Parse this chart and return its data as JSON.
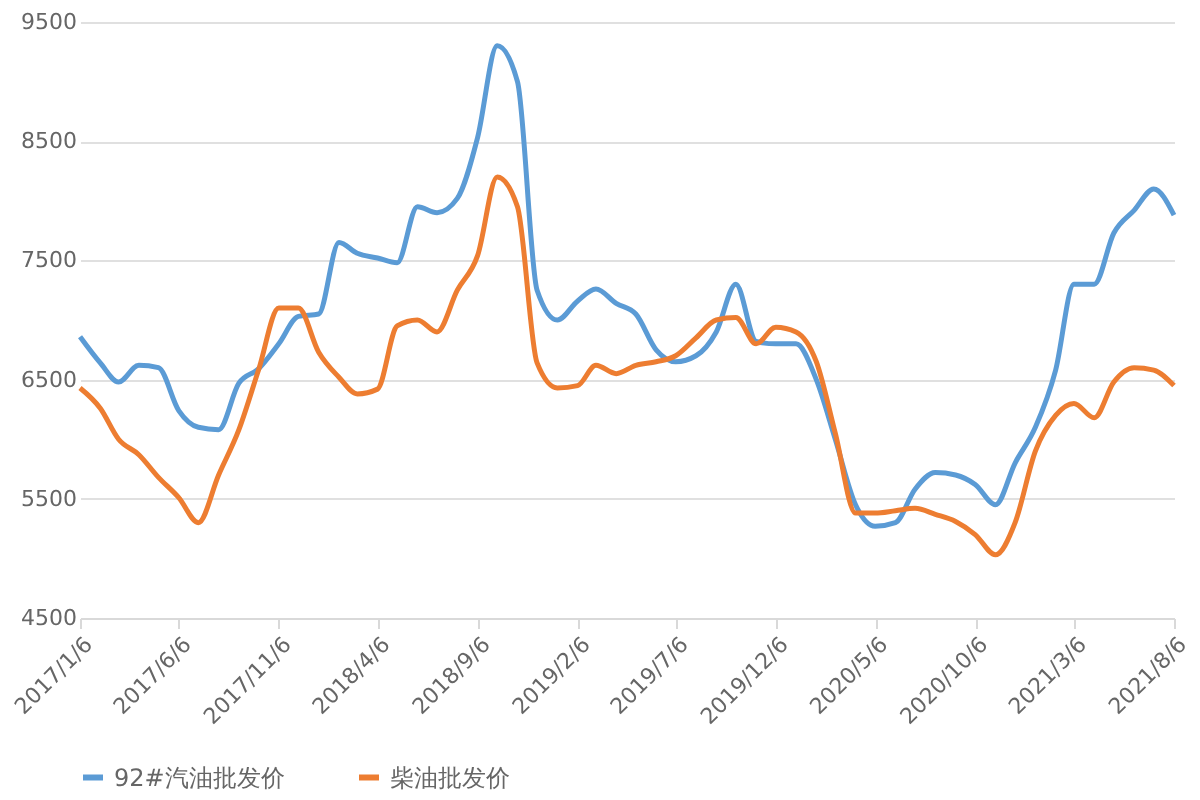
{
  "chart_data": {
    "type": "line",
    "x": [
      "2017-01-06",
      "2017-02-06",
      "2017-03-06",
      "2017-04-06",
      "2017-05-06",
      "2017-06-06",
      "2017-07-06",
      "2017-08-06",
      "2017-09-06",
      "2017-10-06",
      "2017-11-06",
      "2017-12-06",
      "2018-01-06",
      "2018-02-06",
      "2018-03-06",
      "2018-04-06",
      "2018-05-06",
      "2018-06-06",
      "2018-07-06",
      "2018-08-06",
      "2018-09-06",
      "2018-10-06",
      "2018-11-06",
      "2018-12-06",
      "2019-01-06",
      "2019-02-06",
      "2019-03-06",
      "2019-04-06",
      "2019-05-06",
      "2019-06-06",
      "2019-07-06",
      "2019-08-06",
      "2019-09-06",
      "2019-10-06",
      "2019-11-06",
      "2019-12-06",
      "2020-01-06",
      "2020-02-06",
      "2020-03-06",
      "2020-04-06",
      "2020-05-06",
      "2020-06-06",
      "2020-07-06",
      "2020-08-06",
      "2020-09-06",
      "2020-10-06",
      "2020-11-06",
      "2020-12-06",
      "2021-01-06",
      "2021-02-06",
      "2021-03-06",
      "2021-04-06",
      "2021-05-06",
      "2021-06-06",
      "2021-07-06",
      "2021-08-06"
    ],
    "series": [
      {
        "name": "92#汽油批发价",
        "color": "#5b9bd5",
        "values": [
          6860,
          6640,
          6480,
          6620,
          6600,
          6240,
          6100,
          6080,
          6470,
          6590,
          6800,
          7030,
          7050,
          7650,
          7560,
          7520,
          7480,
          7950,
          7900,
          8020,
          8530,
          9300,
          9000,
          7250,
          7000,
          7160,
          7260,
          7140,
          7050,
          6750,
          6650,
          6700,
          6900,
          7300,
          6820,
          6800,
          6800,
          6500,
          6000,
          5450,
          5270,
          5300,
          5580,
          5720,
          5700,
          5620,
          5450,
          5800,
          6100,
          6580,
          7300,
          7300,
          7730,
          7920,
          8100,
          7880
        ]
      },
      {
        "name": "柴油批发价",
        "color": "#ed7d31",
        "values": [
          6430,
          6260,
          6000,
          5870,
          5680,
          5510,
          5300,
          5700,
          6080,
          6580,
          7100,
          7100,
          6730,
          6520,
          6380,
          6420,
          6950,
          7000,
          6900,
          7250,
          7540,
          8200,
          7950,
          6640,
          6430,
          6450,
          6620,
          6550,
          6620,
          6650,
          6700,
          6850,
          7000,
          7020,
          6800,
          6940,
          6900,
          6650,
          6050,
          5380,
          5380,
          5400,
          5420,
          5370,
          5310,
          5200,
          5030,
          5300,
          5900,
          6200,
          6300,
          6180,
          6480,
          6600,
          6580,
          6450
        ]
      }
    ],
    "xlim": [
      "2017-01-06",
      "2021-08-06"
    ],
    "xticks": [
      {
        "value": "2017-01-06",
        "label": "2017/1/6"
      },
      {
        "value": "2017-06-06",
        "label": "2017/6/6"
      },
      {
        "value": "2017-11-06",
        "label": "2017/11/6"
      },
      {
        "value": "2018-04-06",
        "label": "2018/4/6"
      },
      {
        "value": "2018-09-06",
        "label": "2018/9/6"
      },
      {
        "value": "2019-02-06",
        "label": "2019/2/6"
      },
      {
        "value": "2019-07-06",
        "label": "2019/7/6"
      },
      {
        "value": "2019-12-06",
        "label": "2019/12/6"
      },
      {
        "value": "2020-05-06",
        "label": "2020/5/6"
      },
      {
        "value": "2020-10-06",
        "label": "2020/10/6"
      },
      {
        "value": "2021-03-06",
        "label": "2021/3/6"
      },
      {
        "value": "2021-08-06",
        "label": "2021/8/6"
      }
    ],
    "ylim": [
      4500,
      9500
    ],
    "yticks": [
      4500,
      5500,
      6500,
      7500,
      8500,
      9500
    ],
    "grid": "y",
    "legend": "bottom",
    "line_style": "solid"
  }
}
